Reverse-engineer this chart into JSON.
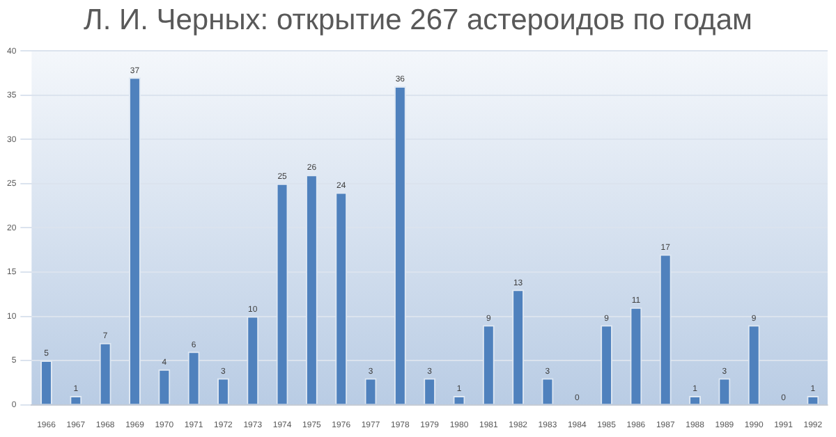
{
  "chart_data": {
    "type": "bar",
    "title": "Л. И. Черных: открытие 267 астероидов по годам",
    "categories": [
      "1966",
      "1967",
      "1968",
      "1969",
      "1970",
      "1971",
      "1972",
      "1973",
      "1974",
      "1975",
      "1976",
      "1977",
      "1978",
      "1979",
      "1980",
      "1981",
      "1982",
      "1983",
      "1984",
      "1985",
      "1986",
      "1987",
      "1988",
      "1989",
      "1990",
      "1991",
      "1992"
    ],
    "values": [
      5,
      1,
      7,
      37,
      4,
      6,
      3,
      10,
      25,
      26,
      24,
      3,
      36,
      3,
      1,
      9,
      13,
      3,
      0,
      9,
      11,
      17,
      1,
      3,
      9,
      0,
      1
    ],
    "color": "#4f81bd",
    "ylim": [
      0,
      40
    ],
    "yticks": [
      0,
      5,
      10,
      15,
      20,
      25,
      30,
      35,
      40
    ],
    "grid": "y",
    "data_labels": true,
    "legend": false
  }
}
